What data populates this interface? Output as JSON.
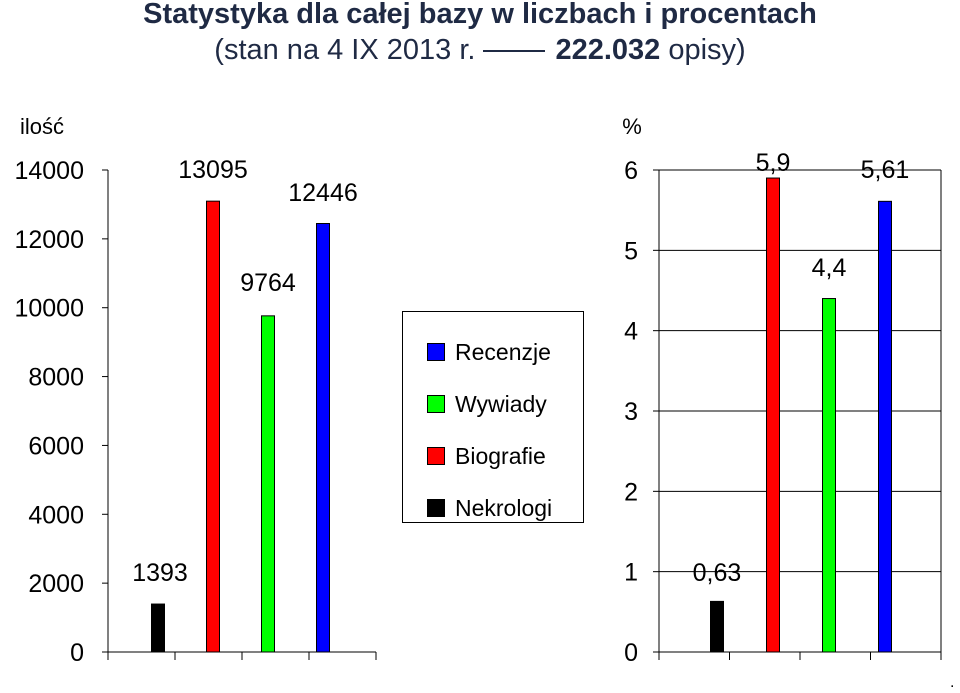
{
  "title": {
    "line1": "Statystyka dla całej bazy w liczbach i procentach",
    "line2_start": "(stan na 4 IX 2013 r.",
    "line2_bold": "222.032",
    "line2_end": "opisy)"
  },
  "legend": {
    "items": [
      {
        "label": "Recenzje",
        "color": "#0000ff"
      },
      {
        "label": "Wywiady",
        "color": "#00ff00"
      },
      {
        "label": "Biografie",
        "color": "#ff0000"
      },
      {
        "label": "Nekrologi",
        "color": "#000000"
      }
    ]
  },
  "corner_mark": ".",
  "chart_data": [
    {
      "type": "bar",
      "ylabel": "ilość",
      "ylim": [
        0,
        14000
      ],
      "yticks": [
        0,
        2000,
        4000,
        6000,
        8000,
        10000,
        12000,
        14000
      ],
      "grid": false,
      "categories": [
        "Nekrologi",
        "Biografie",
        "Wywiady",
        "Recenzje"
      ],
      "values": [
        1393,
        13095,
        9764,
        12446
      ],
      "data_labels": [
        "1393",
        "13095",
        "9764",
        "12446"
      ],
      "colors": [
        "#000000",
        "#ff0000",
        "#00ff00",
        "#0000ff"
      ]
    },
    {
      "type": "bar",
      "ylabel": "%",
      "ylim": [
        0,
        6
      ],
      "yticks": [
        0,
        1,
        2,
        3,
        4,
        5,
        6
      ],
      "grid": true,
      "categories": [
        "Nekrologi",
        "Biografie",
        "Wywiady",
        "Recenzje"
      ],
      "values": [
        0.63,
        5.9,
        4.4,
        5.61
      ],
      "data_labels": [
        "0,63",
        "5,9",
        "4,4",
        "5,61"
      ],
      "colors": [
        "#000000",
        "#ff0000",
        "#00ff00",
        "#0000ff"
      ]
    }
  ]
}
